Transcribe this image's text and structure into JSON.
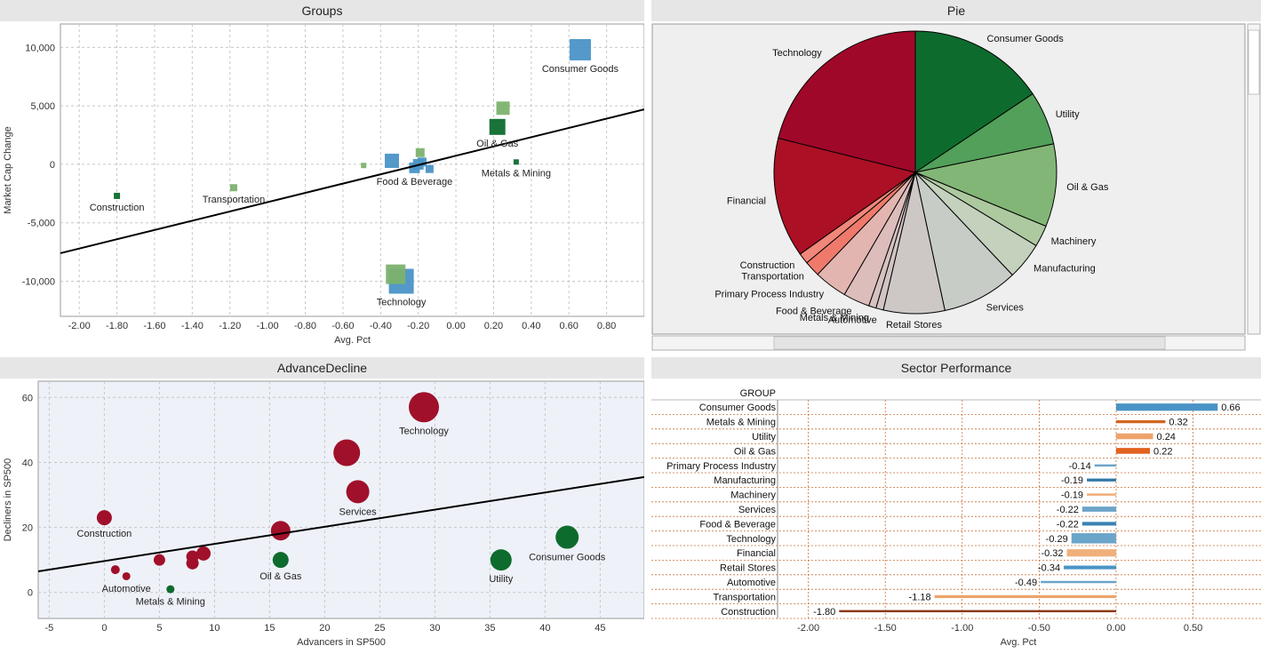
{
  "panels": {
    "groups_title": "Groups",
    "pie_title": "Pie",
    "advdec_title": "AdvanceDecline",
    "sector_title": "Sector Performance"
  },
  "colors": {
    "blue": "#4a93c6",
    "light_green": "#7cb26e",
    "dark_green": "#0e6b2e",
    "crimson": "#a0102a",
    "trendline": "#000000",
    "grid": "#c8c8c8",
    "pie_bg": "#efefef",
    "advdec_bg": "#eef1f8"
  },
  "chart_data": [
    {
      "id": "groups",
      "type": "scatter",
      "title": "Groups",
      "xlabel": "Avg. Pct",
      "ylabel": "Market Cap Change",
      "xlim": [
        -2.1,
        1.0
      ],
      "ylim": [
        -13000,
        12000
      ],
      "xticks": [
        -2.0,
        -1.8,
        -1.6,
        -1.4,
        -1.2,
        -1.0,
        -0.8,
        -0.6,
        -0.4,
        -0.2,
        0.0,
        0.2,
        0.4,
        0.6,
        0.8
      ],
      "xtick_labels": [
        "-2.00",
        "-1.80",
        "-1.60",
        "-1.40",
        "-1.20",
        "-1.00",
        "-0.80",
        "-0.60",
        "-0.40",
        "-0.20",
        "0.00",
        "0.20",
        "0.40",
        "0.60",
        "0.80"
      ],
      "yticks": [
        10000,
        5000,
        0,
        -5000,
        -10000
      ],
      "ytick_labels": [
        "10,000",
        "5,000",
        "0",
        "-5,000",
        "-10,000"
      ],
      "trendline": {
        "x": [
          -2.1,
          1.0
        ],
        "y": [
          -7600,
          4700
        ]
      },
      "points": [
        {
          "label": "Consumer Goods",
          "x": 0.66,
          "y": 9800,
          "size": 24,
          "color": "blue",
          "show_label": true
        },
        {
          "label": "",
          "x": 0.25,
          "y": 4800,
          "size": 15,
          "color": "light_green",
          "show_label": false
        },
        {
          "label": "Oil & Gas",
          "x": 0.22,
          "y": 3200,
          "size": 18,
          "color": "dark_green",
          "show_label": true
        },
        {
          "label": "Metals & Mining",
          "x": 0.32,
          "y": 200,
          "size": 6,
          "color": "dark_green",
          "show_label": true
        },
        {
          "label": "",
          "x": -0.19,
          "y": 1000,
          "size": 10,
          "color": "light_green",
          "show_label": false
        },
        {
          "label": "",
          "x": -0.34,
          "y": 300,
          "size": 16,
          "color": "blue",
          "show_label": false
        },
        {
          "label": "",
          "x": -0.2,
          "y": 0,
          "size": 12,
          "color": "blue",
          "show_label": false
        },
        {
          "label": "",
          "x": -0.18,
          "y": 200,
          "size": 10,
          "color": "blue",
          "show_label": false
        },
        {
          "label": "Food & Beverage",
          "x": -0.22,
          "y": -300,
          "size": 12,
          "color": "blue",
          "show_label": true
        },
        {
          "label": "",
          "x": -0.14,
          "y": -400,
          "size": 9,
          "color": "blue",
          "show_label": false
        },
        {
          "label": "",
          "x": -0.49,
          "y": -100,
          "size": 6,
          "color": "light_green",
          "show_label": false
        },
        {
          "label": "Transportation",
          "x": -1.18,
          "y": -2000,
          "size": 8,
          "color": "light_green",
          "show_label": true
        },
        {
          "label": "Construction",
          "x": -1.8,
          "y": -2700,
          "size": 7,
          "color": "dark_green",
          "show_label": true
        },
        {
          "label": "Technology",
          "x": -0.29,
          "y": -10000,
          "size": 28,
          "color": "blue",
          "show_label": true
        },
        {
          "label": "",
          "x": -0.32,
          "y": -9400,
          "size": 22,
          "color": "light_green",
          "show_label": false
        }
      ]
    },
    {
      "id": "pie",
      "type": "pie",
      "title": "Pie",
      "slices": [
        {
          "label": "Consumer Goods",
          "value": 16.5,
          "color": "#0e6b2e"
        },
        {
          "label": "Utility",
          "value": 6.5,
          "color": "#52a05a"
        },
        {
          "label": "Oil & Gas",
          "value": 10.0,
          "color": "#82b676"
        },
        {
          "label": "Machinery",
          "value": 2.6,
          "color": "#adc9a0"
        },
        {
          "label": "Manufacturing",
          "value": 4.5,
          "color": "#c3d1bd"
        },
        {
          "label": "Services",
          "value": 9.2,
          "color": "#c8ccc6"
        },
        {
          "label": "Retail Stores",
          "value": 7.4,
          "color": "#cdc8c6"
        },
        {
          "label": "Automotive",
          "value": 0.9,
          "color": "#d1c4c3"
        },
        {
          "label": "Metals & Mining",
          "value": 0.9,
          "color": "#d5c2c1"
        },
        {
          "label": "Food & Beverage",
          "value": 3.2,
          "color": "#dcbdbb"
        },
        {
          "label": "Primary Process Industry",
          "value": 4.0,
          "color": "#e3b5b0"
        },
        {
          "label": "Transportation",
          "value": 1.9,
          "color": "#ef7a6c"
        },
        {
          "label": "Construction",
          "value": 1.3,
          "color": "#f0877a"
        },
        {
          "label": "Financial",
          "value": 14.5,
          "color": "#ac1024"
        },
        {
          "label": "Technology",
          "value": 22.3,
          "color": "#a0082a"
        }
      ]
    },
    {
      "id": "advancedecline",
      "type": "scatter",
      "title": "AdvanceDecline",
      "xlabel": "Advancers in SP500",
      "ylabel": "Decliners in SP500",
      "xlim": [
        -6,
        49
      ],
      "ylim": [
        -8,
        65
      ],
      "xticks": [
        -5,
        0,
        5,
        10,
        15,
        20,
        25,
        30,
        35,
        40,
        45
      ],
      "xtick_labels": [
        "-5",
        "0",
        "5",
        "10",
        "15",
        "20",
        "25",
        "30",
        "35",
        "40",
        "45"
      ],
      "yticks": [
        60,
        40,
        20,
        0
      ],
      "ytick_labels": [
        "60",
        "40",
        "20",
        "0"
      ],
      "trendline": {
        "x": [
          -6,
          49
        ],
        "y": [
          6.5,
          35.5
        ]
      },
      "points": [
        {
          "label": "Technology",
          "x": 29,
          "y": 57,
          "size": 34,
          "color": "crimson",
          "show_label": true
        },
        {
          "label": "",
          "x": 22,
          "y": 43,
          "size": 30,
          "color": "crimson",
          "show_label": false
        },
        {
          "label": "Services",
          "x": 23,
          "y": 31,
          "size": 26,
          "color": "crimson",
          "show_label": true
        },
        {
          "label": "Construction",
          "x": 0,
          "y": 23,
          "size": 17,
          "color": "crimson",
          "show_label": true
        },
        {
          "label": "",
          "x": 16,
          "y": 19,
          "size": 22,
          "color": "crimson",
          "show_label": false
        },
        {
          "label": "Consumer Goods",
          "x": 42,
          "y": 17,
          "size": 26,
          "color": "dark_green",
          "show_label": true
        },
        {
          "label": "Utility",
          "x": 36,
          "y": 10,
          "size": 24,
          "color": "dark_green",
          "show_label": true
        },
        {
          "label": "Oil & Gas",
          "x": 16,
          "y": 10,
          "size": 18,
          "color": "dark_green",
          "show_label": true
        },
        {
          "label": "",
          "x": 9,
          "y": 12,
          "size": 16,
          "color": "crimson",
          "show_label": false
        },
        {
          "label": "",
          "x": 8,
          "y": 11,
          "size": 14,
          "color": "crimson",
          "show_label": false
        },
        {
          "label": "",
          "x": 8,
          "y": 9,
          "size": 14,
          "color": "crimson",
          "show_label": false
        },
        {
          "label": "",
          "x": 5,
          "y": 10,
          "size": 13,
          "color": "crimson",
          "show_label": false
        },
        {
          "label": "",
          "x": 1,
          "y": 7,
          "size": 10,
          "color": "crimson",
          "show_label": false
        },
        {
          "label": "Automotive",
          "x": 2,
          "y": 5,
          "size": 9,
          "color": "crimson",
          "show_label": true
        },
        {
          "label": "Metals & Mining",
          "x": 6,
          "y": 1,
          "size": 9,
          "color": "dark_green",
          "show_label": true
        }
      ]
    },
    {
      "id": "sector",
      "type": "bar",
      "title": "Sector Performance",
      "header": "GROUP",
      "xlabel": "Avg. Pct",
      "xlim": [
        -2.2,
        0.93
      ],
      "xticks": [
        -2.0,
        -1.5,
        -1.0,
        -0.5,
        0.0,
        0.5
      ],
      "xtick_labels": [
        "-2.00",
        "-1.50",
        "-1.00",
        "-0.50",
        "0.00",
        "0.50"
      ],
      "categories": [
        "Consumer Goods",
        "Metals & Mining",
        "Utility",
        "Oil & Gas",
        "Primary Process Industry",
        "Manufacturing",
        "Machinery",
        "Services",
        "Food & Beverage",
        "Technology",
        "Financial",
        "Retail Stores",
        "Automotive",
        "Transportation",
        "Construction"
      ],
      "values": [
        0.66,
        0.32,
        0.24,
        0.22,
        -0.14,
        -0.19,
        -0.19,
        -0.22,
        -0.22,
        -0.29,
        -0.32,
        -0.34,
        -0.49,
        -1.18,
        -1.8
      ],
      "value_labels": [
        "0.66",
        "0.32",
        "0.24",
        "0.22",
        "-0.14",
        "-0.19",
        "-0.19",
        "-0.22",
        "-0.22",
        "-0.29",
        "-0.32",
        "-0.34",
        "-0.49",
        "-1.18",
        "-1.80"
      ],
      "bar_colors": [
        "#4a93c6",
        "#d0651f",
        "#eea36c",
        "#e2621e",
        "#6ba5c9",
        "#2f78a8",
        "#f0ac7a",
        "#6ba5c9",
        "#3a81b3",
        "#6ba5c9",
        "#f0b07c",
        "#4a93c6",
        "#6ba5c9",
        "#eea36c",
        "#8b3a12"
      ],
      "bar_weights": [
        0.5,
        0.2,
        0.4,
        0.4,
        0.15,
        0.2,
        0.15,
        0.35,
        0.25,
        0.7,
        0.5,
        0.25,
        0.15,
        0.2,
        0.15
      ]
    }
  ]
}
